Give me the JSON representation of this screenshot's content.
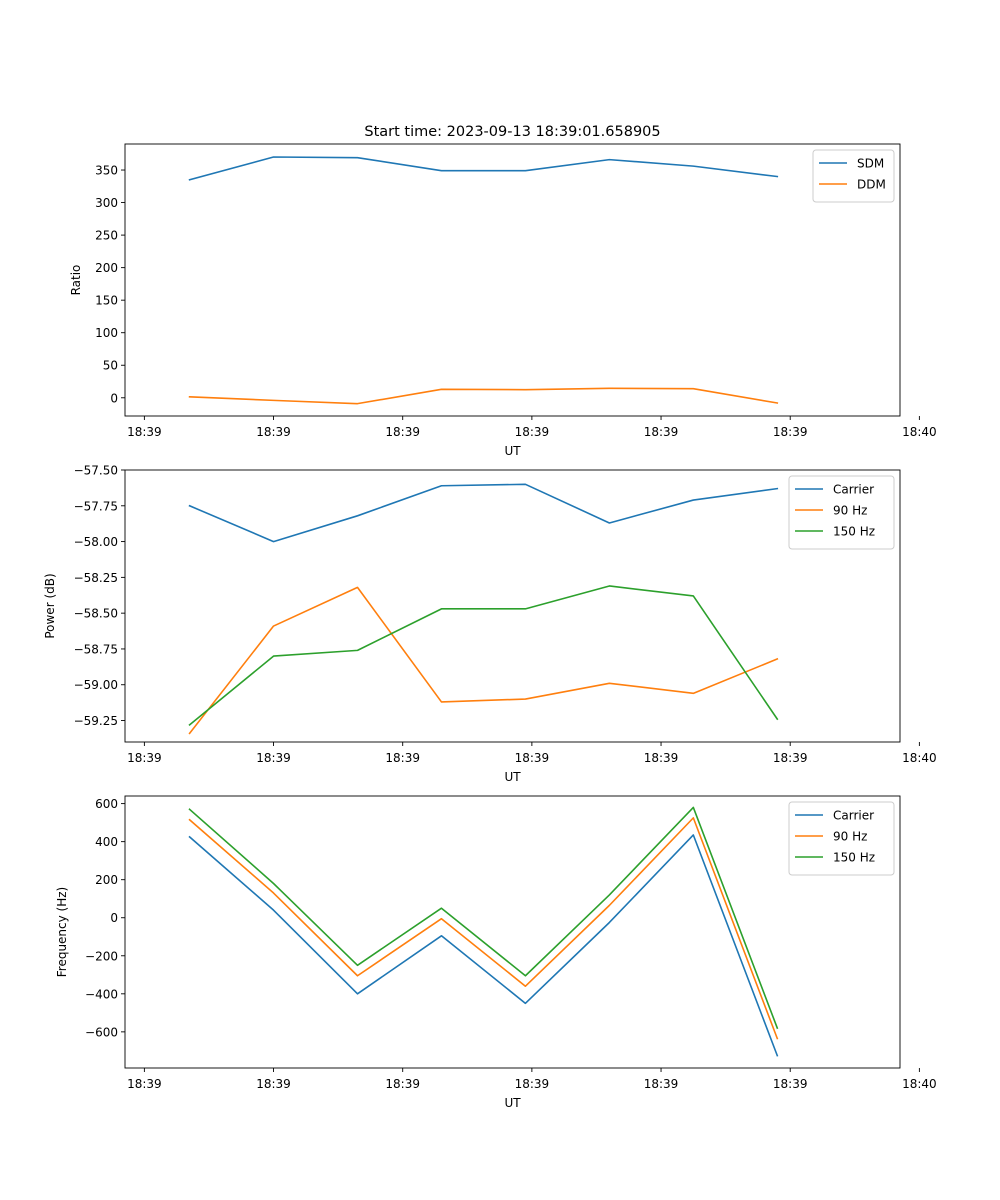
{
  "chart_data": [
    {
      "type": "line",
      "title": "Start time: 2023-09-13 18:39:01.658905",
      "xlabel": "UT",
      "ylabel": "Ratio",
      "xlim": [
        0,
        12
      ],
      "ylim": [
        -28,
        390
      ],
      "x": [
        1,
        2.3,
        3.6,
        4.9,
        6.2,
        7.5,
        8.8,
        10.1
      ],
      "x_ticks": [
        0.3,
        2.3,
        4.3,
        6.3,
        8.3,
        10.3,
        12.3
      ],
      "x_tick_labels": [
        "18:39",
        "18:39",
        "18:39",
        "18:39",
        "18:39",
        "18:39",
        "18:40"
      ],
      "y_ticks": [
        0,
        50,
        100,
        150,
        200,
        250,
        300,
        350
      ],
      "y_tick_labels": [
        "0",
        "50",
        "100",
        "150",
        "200",
        "250",
        "300",
        "350"
      ],
      "series": [
        {
          "name": "SDM",
          "color": "#1f77b4",
          "values": [
            335,
            370,
            369,
            349,
            349,
            366,
            356,
            340
          ]
        },
        {
          "name": "DDM",
          "color": "#ff7f0e",
          "values": [
            1.5,
            -4,
            -9,
            13,
            12.5,
            14.5,
            14,
            -8
          ]
        }
      ],
      "legend": "top-right",
      "grid": false
    },
    {
      "type": "line",
      "xlabel": "UT",
      "ylabel": "Power (dB)",
      "xlim": [
        0,
        12
      ],
      "ylim": [
        -59.4,
        -57.5
      ],
      "x": [
        1,
        2.3,
        3.6,
        4.9,
        6.2,
        7.5,
        8.8,
        10.1
      ],
      "x_ticks": [
        0.3,
        2.3,
        4.3,
        6.3,
        8.3,
        10.3,
        12.3
      ],
      "x_tick_labels": [
        "18:39",
        "18:39",
        "18:39",
        "18:39",
        "18:39",
        "18:39",
        "18:40"
      ],
      "y_ticks": [
        -57.5,
        -57.75,
        -58.0,
        -58.25,
        -58.5,
        -58.75,
        -59.0,
        -59.25
      ],
      "y_tick_labels": [
        "−57.50",
        "−57.75",
        "−58.00",
        "−58.25",
        "−58.50",
        "−58.75",
        "−59.00",
        "−59.25"
      ],
      "series": [
        {
          "name": "Carrier",
          "color": "#1f77b4",
          "values": [
            -57.75,
            -58.0,
            -57.82,
            -57.61,
            -57.6,
            -57.87,
            -57.71,
            -57.63
          ]
        },
        {
          "name": "90 Hz",
          "color": "#ff7f0e",
          "values": [
            -59.34,
            -58.59,
            -58.32,
            -59.12,
            -59.1,
            -58.99,
            -59.06,
            -58.82
          ]
        },
        {
          "name": "150 Hz",
          "color": "#2ca02c",
          "values": [
            -59.28,
            -58.8,
            -58.76,
            -58.47,
            -58.47,
            -58.31,
            -58.38,
            -59.24
          ]
        }
      ],
      "legend": "top-right",
      "grid": false
    },
    {
      "type": "line",
      "xlabel": "UT",
      "ylabel": "Frequency (Hz)",
      "xlim": [
        0,
        12
      ],
      "ylim": [
        -790,
        640
      ],
      "x": [
        1,
        2.3,
        3.6,
        4.9,
        6.2,
        7.5,
        8.8,
        10.1
      ],
      "x_ticks": [
        0.3,
        2.3,
        4.3,
        6.3,
        8.3,
        10.3,
        12.3
      ],
      "x_tick_labels": [
        "18:39",
        "18:39",
        "18:39",
        "18:39",
        "18:39",
        "18:39",
        "18:40"
      ],
      "y_ticks": [
        600,
        400,
        200,
        0,
        -200,
        -400,
        -600
      ],
      "y_tick_labels": [
        "600",
        "400",
        "200",
        "0",
        "−200",
        "−400",
        "−600"
      ],
      "series": [
        {
          "name": "Carrier",
          "color": "#1f77b4",
          "values": [
            425,
            40,
            -400,
            -95,
            -450,
            -25,
            435,
            -725
          ]
        },
        {
          "name": "90 Hz",
          "color": "#ff7f0e",
          "values": [
            515,
            130,
            -305,
            -5,
            -360,
            65,
            525,
            -635
          ]
        },
        {
          "name": "150 Hz",
          "color": "#2ca02c",
          "values": [
            570,
            180,
            -250,
            50,
            -305,
            120,
            580,
            -580
          ]
        }
      ],
      "legend": "top-right",
      "grid": false
    }
  ]
}
